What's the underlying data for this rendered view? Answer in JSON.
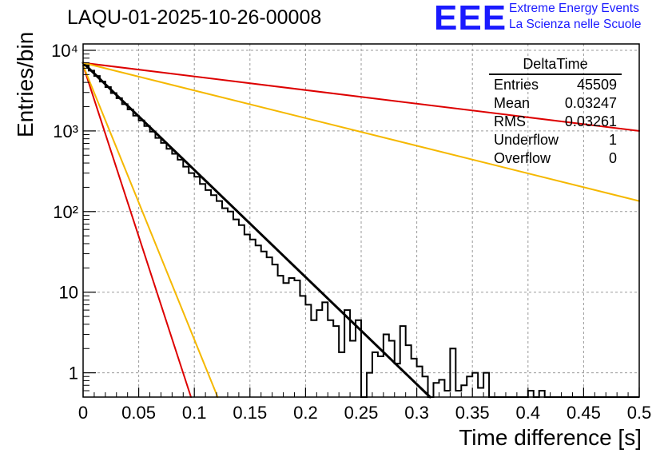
{
  "header": {
    "title": "LAQU-01-2025-10-26-00008",
    "logo_text": "EEE",
    "logo_line1": "Extreme Energy Events",
    "logo_line2": "La Scienza nelle Scuole"
  },
  "stats_box": {
    "name": "DeltaTime",
    "rows": [
      {
        "label": "Entries",
        "value": "45509"
      },
      {
        "label": "Mean",
        "value": "0.03247"
      },
      {
        "label": "RMS",
        "value": "0.03261"
      },
      {
        "label": "Underflow",
        "value": "1"
      },
      {
        "label": "Overflow",
        "value": "0"
      }
    ]
  },
  "colors": {
    "histogram": "#000000",
    "fit": "#000000",
    "red": "#dd0000",
    "orange": "#f5b800",
    "grid": "#9a9a9a",
    "logo": "#1a1aff"
  },
  "chart_data": {
    "type": "histogram",
    "title": "LAQU-01-2025-10-26-00008",
    "xlabel": "Time difference [s]",
    "ylabel": "Entries/bin",
    "xlim": [
      0,
      0.5
    ],
    "ylim": [
      0.5,
      12000
    ],
    "yscale": "log",
    "grid": true,
    "x_ticks": [
      0,
      0.05,
      0.1,
      0.15,
      0.2,
      0.25,
      0.3,
      0.35,
      0.4,
      0.45,
      0.5
    ],
    "x_tick_labels": [
      "0",
      "0.05",
      "0.1",
      "0.15",
      "0.2",
      "0.25",
      "0.3",
      "0.35",
      "0.4",
      "0.45",
      "0.5"
    ],
    "y_ticks": [
      1,
      10,
      100,
      1000,
      10000
    ],
    "y_tick_labels": [
      "1",
      "10",
      "10²",
      "10³",
      "10⁴"
    ],
    "bin_width": 0.005,
    "bin_values": [
      6500,
      5600,
      4800,
      4100,
      3500,
      2950,
      2550,
      2150,
      1850,
      1550,
      1350,
      1150,
      980,
      820,
      710,
      600,
      520,
      440,
      360,
      300,
      270,
      220,
      185,
      160,
      135,
      110,
      100,
      80,
      68,
      52,
      45,
      38,
      32,
      27,
      22,
      16,
      13,
      15,
      14,
      9,
      7,
      4.5,
      6,
      7.5,
      4.5,
      3.8,
      1.8,
      6,
      2.5,
      4.5,
      0.5,
      1,
      1.8,
      1.6,
      3,
      2.5,
      1.3,
      3.8,
      2.2,
      1.5,
      1.2,
      0.9,
      0.45,
      0.75,
      0.82,
      0.6,
      2,
      0.6,
      0.7,
      0.9,
      1,
      0.65,
      1,
      0.35,
      0.3,
      0,
      0,
      0,
      0,
      0,
      0.6,
      0,
      0.6,
      0,
      0,
      0,
      0,
      0,
      0,
      0,
      0,
      0,
      0,
      0,
      0,
      0,
      0,
      0,
      0,
      0
    ],
    "series": [
      {
        "name": "fit",
        "color": "#000000",
        "x": [
          0,
          0.312
        ],
        "y": [
          7000,
          0.5
        ]
      },
      {
        "name": "red-steep",
        "color": "#dd0000",
        "x": [
          0,
          0.097
        ],
        "y": [
          6500,
          0.5
        ]
      },
      {
        "name": "orange-steep",
        "color": "#f5b800",
        "x": [
          0,
          0.121
        ],
        "y": [
          6500,
          0.5
        ]
      },
      {
        "name": "red-shallow",
        "color": "#dd0000",
        "x": [
          0,
          0.5
        ],
        "y": [
          7000,
          1000
        ]
      },
      {
        "name": "orange-shallow",
        "color": "#f5b800",
        "x": [
          0,
          0.5
        ],
        "y": [
          7000,
          135
        ]
      }
    ]
  },
  "axes": {
    "xlabel": "Time difference [s]",
    "ylabel": "Entries/bin"
  }
}
